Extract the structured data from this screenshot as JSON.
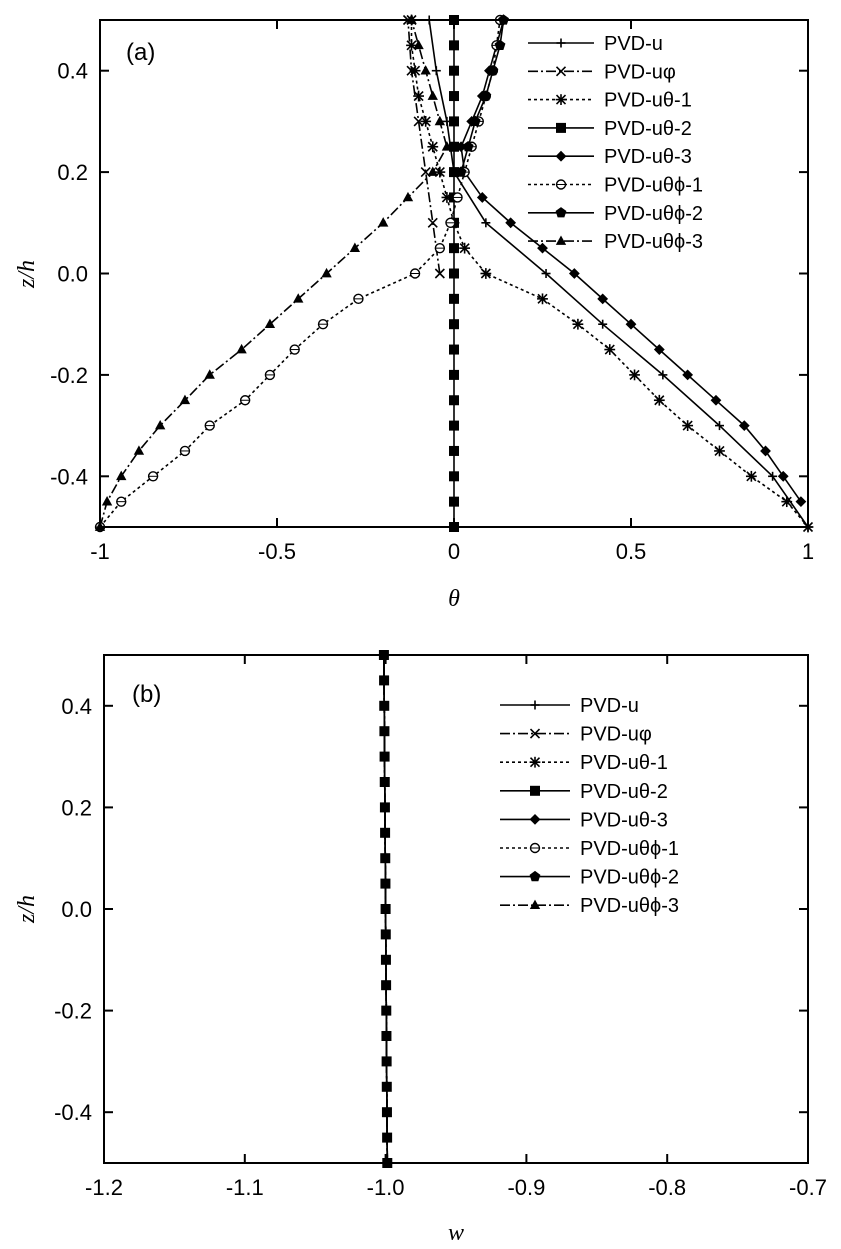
{
  "chart_data": [
    {
      "type": "line",
      "panel_label": "(a)",
      "xlabel": "θ",
      "ylabel": "z/h",
      "xlim": [
        -1,
        1
      ],
      "ylim": [
        -0.5,
        0.5
      ],
      "x_ticks": [
        "-1",
        "-0.5",
        "0",
        "0.5",
        "1"
      ],
      "y_ticks": [
        "-0.4",
        "-0.2",
        "0.0",
        "0.2",
        "0.4"
      ],
      "legend_position": "top-right",
      "series": [
        {
          "name": "PVD-u",
          "marker": "plus",
          "dash": "solid",
          "points": [
            [
              1.0,
              -0.5
            ],
            [
              0.9,
              -0.4
            ],
            [
              0.75,
              -0.3
            ],
            [
              0.59,
              -0.2
            ],
            [
              0.42,
              -0.1
            ],
            [
              0.26,
              0.0
            ],
            [
              0.09,
              0.1
            ],
            [
              0.0,
              0.2
            ],
            [
              -0.02,
              0.3
            ],
            [
              -0.05,
              0.4
            ],
            [
              -0.07,
              0.5
            ]
          ]
        },
        {
          "name": "PVD-uφ",
          "marker": "cross",
          "dash": "dashdot",
          "points": [
            [
              -0.04,
              0.0
            ],
            [
              -0.06,
              0.1
            ],
            [
              -0.08,
              0.2
            ],
            [
              -0.1,
              0.3
            ],
            [
              -0.12,
              0.4
            ],
            [
              -0.13,
              0.5
            ]
          ]
        },
        {
          "name": "PVD-uθ-1",
          "marker": "asterisk",
          "dash": "dot",
          "points": [
            [
              1.0,
              -0.5
            ],
            [
              0.94,
              -0.45
            ],
            [
              0.84,
              -0.4
            ],
            [
              0.75,
              -0.35
            ],
            [
              0.66,
              -0.3
            ],
            [
              0.58,
              -0.25
            ],
            [
              0.51,
              -0.2
            ],
            [
              0.44,
              -0.15
            ],
            [
              0.35,
              -0.1
            ],
            [
              0.25,
              -0.05
            ],
            [
              0.09,
              0.0
            ],
            [
              0.03,
              0.05
            ],
            [
              0.0,
              0.1
            ],
            [
              -0.02,
              0.15
            ],
            [
              -0.04,
              0.2
            ],
            [
              -0.06,
              0.25
            ],
            [
              -0.08,
              0.3
            ],
            [
              -0.1,
              0.35
            ],
            [
              -0.11,
              0.4
            ],
            [
              -0.12,
              0.45
            ],
            [
              -0.12,
              0.5
            ]
          ]
        },
        {
          "name": "PVD-uθ-2",
          "marker": "square-open",
          "dash": "solid",
          "points": [
            [
              0.0,
              -0.5
            ],
            [
              0.0,
              0.5
            ]
          ]
        },
        {
          "name": "PVD-uθ-3",
          "marker": "diamond",
          "dash": "solid",
          "points": [
            [
              0.98,
              -0.45
            ],
            [
              0.93,
              -0.4
            ],
            [
              0.88,
              -0.35
            ],
            [
              0.82,
              -0.3
            ],
            [
              0.74,
              -0.25
            ],
            [
              0.66,
              -0.2
            ],
            [
              0.58,
              -0.15
            ],
            [
              0.5,
              -0.1
            ],
            [
              0.42,
              -0.05
            ],
            [
              0.34,
              0.0
            ],
            [
              0.25,
              0.05
            ],
            [
              0.16,
              0.1
            ],
            [
              0.08,
              0.15
            ],
            [
              0.03,
              0.2
            ],
            [
              0.02,
              0.25
            ],
            [
              0.05,
              0.3
            ],
            [
              0.08,
              0.35
            ],
            [
              0.1,
              0.4
            ],
            [
              0.12,
              0.45
            ],
            [
              0.14,
              0.5
            ]
          ]
        },
        {
          "name": "PVD-uθϕ-1",
          "marker": "circle-half",
          "dash": "dot",
          "points": [
            [
              -1.0,
              -0.5
            ],
            [
              -0.94,
              -0.45
            ],
            [
              -0.85,
              -0.4
            ],
            [
              -0.76,
              -0.35
            ],
            [
              -0.69,
              -0.3
            ],
            [
              -0.59,
              -0.25
            ],
            [
              -0.52,
              -0.2
            ],
            [
              -0.45,
              -0.15
            ],
            [
              -0.37,
              -0.1
            ],
            [
              -0.27,
              -0.05
            ],
            [
              -0.11,
              0.0
            ],
            [
              -0.04,
              0.05
            ],
            [
              -0.01,
              0.1
            ],
            [
              0.01,
              0.15
            ],
            [
              0.03,
              0.2
            ],
            [
              0.05,
              0.25
            ],
            [
              0.07,
              0.3
            ],
            [
              0.09,
              0.35
            ],
            [
              0.11,
              0.4
            ],
            [
              0.12,
              0.45
            ],
            [
              0.13,
              0.5
            ]
          ]
        },
        {
          "name": "PVD-uθϕ-2",
          "marker": "pentagon",
          "dash": "solid",
          "points": [
            [
              0.02,
              0.2
            ],
            [
              0.04,
              0.25
            ],
            [
              0.06,
              0.3
            ],
            [
              0.09,
              0.35
            ],
            [
              0.11,
              0.4
            ],
            [
              0.13,
              0.45
            ],
            [
              0.14,
              0.5
            ]
          ]
        },
        {
          "name": "PVD-uθϕ-3",
          "marker": "triangle",
          "dash": "dashdot",
          "points": [
            [
              -1.0,
              -0.5
            ],
            [
              -0.98,
              -0.45
            ],
            [
              -0.94,
              -0.4
            ],
            [
              -0.89,
              -0.35
            ],
            [
              -0.83,
              -0.3
            ],
            [
              -0.76,
              -0.25
            ],
            [
              -0.69,
              -0.2
            ],
            [
              -0.6,
              -0.15
            ],
            [
              -0.52,
              -0.1
            ],
            [
              -0.44,
              -0.05
            ],
            [
              -0.36,
              0.0
            ],
            [
              -0.28,
              0.05
            ],
            [
              -0.2,
              0.1
            ],
            [
              -0.13,
              0.15
            ],
            [
              -0.06,
              0.2
            ],
            [
              -0.02,
              0.25
            ],
            [
              -0.04,
              0.3
            ],
            [
              -0.06,
              0.35
            ],
            [
              -0.08,
              0.4
            ],
            [
              -0.1,
              0.45
            ],
            [
              -0.12,
              0.5
            ]
          ]
        }
      ]
    },
    {
      "type": "line",
      "panel_label": "(b)",
      "xlabel": "w",
      "ylabel": "z/h",
      "xlim": [
        -1.2,
        -0.7
      ],
      "ylim": [
        -0.5,
        0.5
      ],
      "x_ticks": [
        "-1.2",
        "-1.1",
        "-1.0",
        "-0.9",
        "-0.8",
        "-0.7"
      ],
      "y_ticks": [
        "-0.4",
        "-0.2",
        "0.0",
        "0.2",
        "0.4"
      ],
      "legend_position": "top-right",
      "series": [
        {
          "name": "PVD-u",
          "marker": "plus",
          "dash": "solid",
          "points": [
            [
              -0.9988,
              -0.5
            ],
            [
              -1.0012,
              0.5
            ]
          ]
        },
        {
          "name": "PVD-uφ",
          "marker": "cross",
          "dash": "dashdot",
          "points": [
            [
              -0.9988,
              -0.5
            ],
            [
              -1.0012,
              0.5
            ]
          ]
        },
        {
          "name": "PVD-uθ-1",
          "marker": "asterisk",
          "dash": "dot",
          "points": [
            [
              -0.9988,
              -0.5
            ],
            [
              -1.0012,
              0.5
            ]
          ]
        },
        {
          "name": "PVD-uθ-2",
          "marker": "square-open",
          "dash": "solid",
          "points": [
            [
              -0.9988,
              -0.5
            ],
            [
              -1.0012,
              0.5
            ]
          ]
        },
        {
          "name": "PVD-uθ-3",
          "marker": "diamond",
          "dash": "solid",
          "points": [
            [
              -0.9988,
              -0.5
            ],
            [
              -1.0012,
              0.5
            ]
          ]
        },
        {
          "name": "PVD-uθϕ-1",
          "marker": "circle-half",
          "dash": "dot",
          "points": [
            [
              -0.9988,
              -0.5
            ],
            [
              -1.0012,
              0.5
            ]
          ]
        },
        {
          "name": "PVD-uθϕ-2",
          "marker": "pentagon",
          "dash": "solid",
          "points": [
            [
              -0.9988,
              -0.5
            ],
            [
              -1.0012,
              0.5
            ]
          ]
        },
        {
          "name": "PVD-uθϕ-3",
          "marker": "triangle",
          "dash": "dashdot",
          "points": [
            [
              -0.9988,
              -0.5
            ],
            [
              -1.0012,
              0.5
            ]
          ]
        }
      ]
    }
  ]
}
